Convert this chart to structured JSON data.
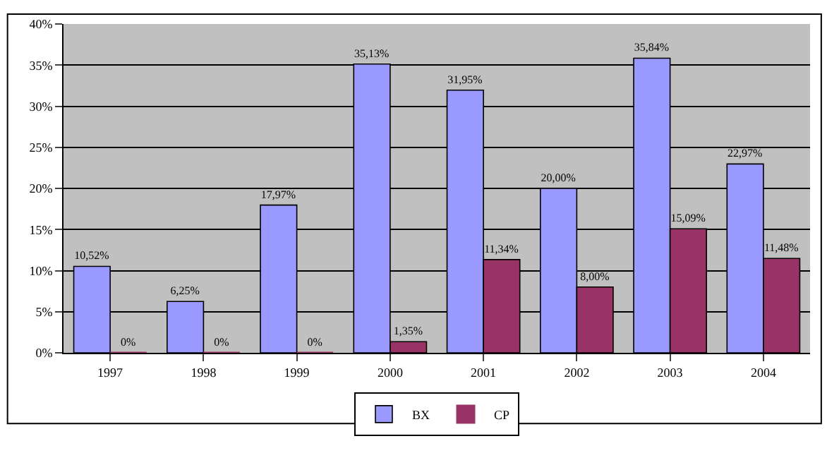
{
  "chart_data": {
    "type": "bar",
    "categories": [
      "1997",
      "1998",
      "1999",
      "2000",
      "2001",
      "2002",
      "2003",
      "2004"
    ],
    "series": [
      {
        "name": "BX",
        "color": "#9999ff",
        "values": [
          10.52,
          6.25,
          17.97,
          35.13,
          31.95,
          20.0,
          35.84,
          22.97
        ],
        "value_labels": [
          "10,52%",
          "6,25%",
          "17,97%",
          "35,13%",
          "31,95%",
          "20,00%",
          "35,84%",
          "22,97%"
        ]
      },
      {
        "name": "CP",
        "color": "#993366",
        "values": [
          0,
          0,
          0,
          1.35,
          11.34,
          8.0,
          15.09,
          11.48
        ],
        "value_labels": [
          "0%",
          "0%",
          "0%",
          "1,35%",
          "11,34%",
          "8,00%",
          "15,09%",
          "11,48%"
        ]
      }
    ],
    "ylim": [
      0,
      40
    ],
    "yticks": [
      {
        "value": 0,
        "label": "0%"
      },
      {
        "value": 5,
        "label": "5%"
      },
      {
        "value": 10,
        "label": "10%"
      },
      {
        "value": 15,
        "label": "15%"
      },
      {
        "value": 20,
        "label": "20%"
      },
      {
        "value": 25,
        "label": "25%"
      },
      {
        "value": 30,
        "label": "30%"
      },
      {
        "value": 35,
        "label": "35%"
      },
      {
        "value": 40,
        "label": "40%"
      }
    ],
    "grid": "y",
    "legend": "bottom"
  }
}
